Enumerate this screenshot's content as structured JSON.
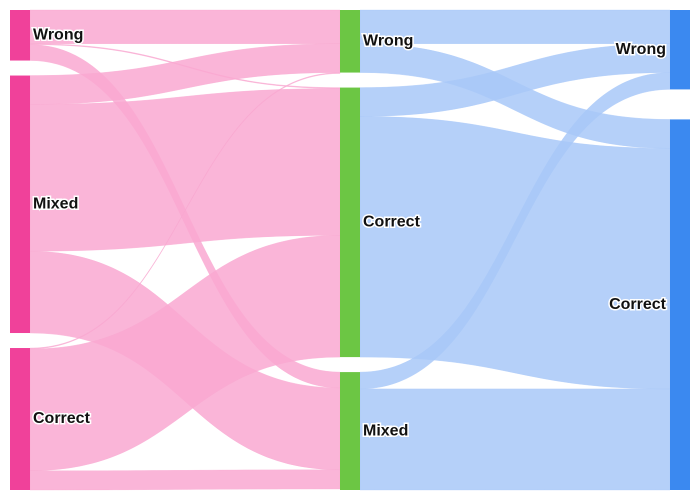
{
  "chart_data": {
    "type": "sankey",
    "stages": [
      {
        "nodes": [
          "Wrong",
          "Mixed",
          "Correct"
        ]
      },
      {
        "nodes": [
          "Wrong",
          "Correct",
          "Mixed"
        ]
      },
      {
        "nodes": [
          "Wrong",
          "Correct"
        ]
      }
    ],
    "nodes": [
      {
        "id": "s0-wrong",
        "stage": 0,
        "label": "Wrong",
        "value": 21
      },
      {
        "id": "s0-mixed",
        "stage": 0,
        "label": "Mixed",
        "value": 107
      },
      {
        "id": "s0-correct",
        "stage": 0,
        "label": "Correct",
        "value": 59
      },
      {
        "id": "s1-wrong",
        "stage": 1,
        "label": "Wrong",
        "value": 26
      },
      {
        "id": "s1-correct",
        "stage": 1,
        "label": "Correct",
        "value": 112
      },
      {
        "id": "s1-mixed",
        "stage": 1,
        "label": "Mixed",
        "value": 49
      },
      {
        "id": "s2-wrong",
        "stage": 2,
        "label": "Wrong",
        "value": 33
      },
      {
        "id": "s2-correct",
        "stage": 2,
        "label": "Correct",
        "value": 154
      }
    ],
    "links": [
      {
        "source": "s0-wrong",
        "target": "s1-wrong",
        "value": 14
      },
      {
        "source": "s0-wrong",
        "target": "s1-correct",
        "value": 0.4
      },
      {
        "source": "s0-wrong",
        "target": "s1-mixed",
        "value": 6.6
      },
      {
        "source": "s0-mixed",
        "target": "s1-wrong",
        "value": 12
      },
      {
        "source": "s0-mixed",
        "target": "s1-correct",
        "value": 61
      },
      {
        "source": "s0-mixed",
        "target": "s1-mixed",
        "value": 34
      },
      {
        "source": "s0-correct",
        "target": "s1-wrong",
        "value": 0.4
      },
      {
        "source": "s0-correct",
        "target": "s1-correct",
        "value": 50.6
      },
      {
        "source": "s0-correct",
        "target": "s1-mixed",
        "value": 8
      },
      {
        "source": "s1-wrong",
        "target": "s2-wrong",
        "value": 14
      },
      {
        "source": "s1-wrong",
        "target": "s2-correct",
        "value": 12
      },
      {
        "source": "s1-correct",
        "target": "s2-wrong",
        "value": 12
      },
      {
        "source": "s1-correct",
        "target": "s2-correct",
        "value": 100
      },
      {
        "source": "s1-mixed",
        "target": "s2-wrong",
        "value": 7
      },
      {
        "source": "s1-mixed",
        "target": "s2-correct",
        "value": 42
      }
    ],
    "colors": {
      "stage0_node": "#f0419a",
      "stage0_link": "#f9a8d1",
      "stage1_node": "#6cc644",
      "stage1_link": "#a8c8f8",
      "stage2_node": "#3b89f0"
    }
  }
}
